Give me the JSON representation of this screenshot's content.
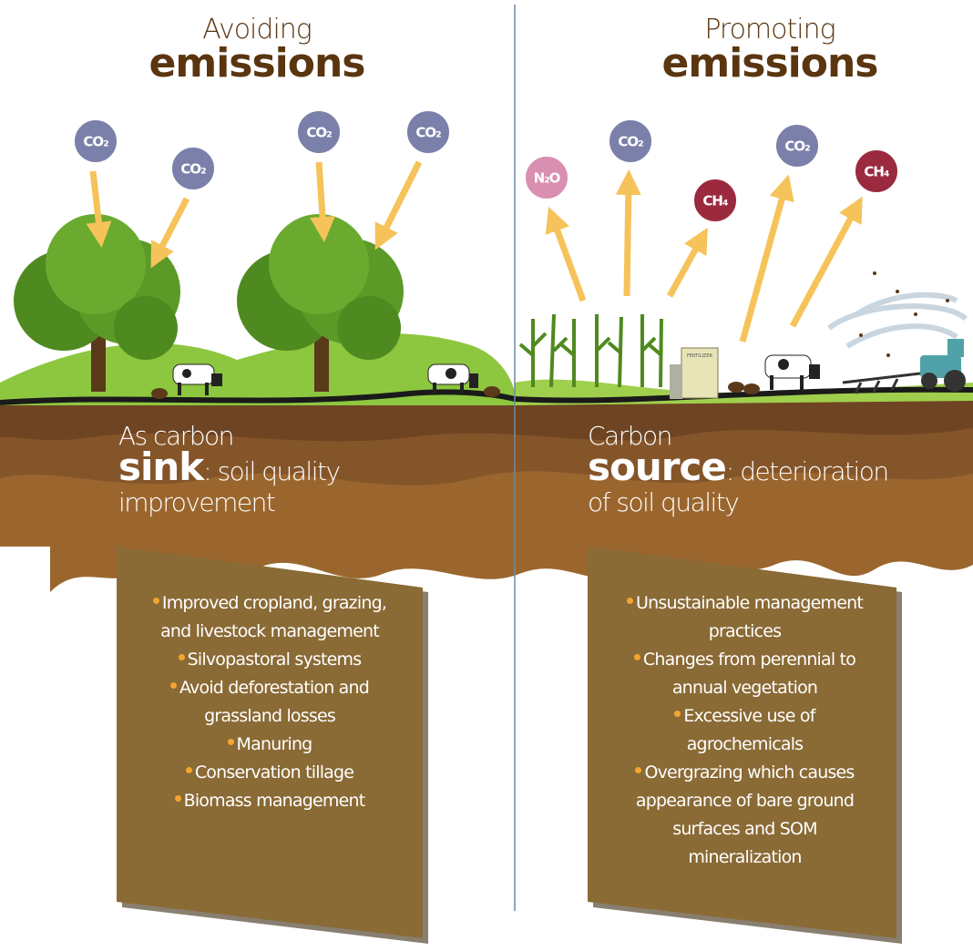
{
  "left": {
    "heading": {
      "small": "Avoiding",
      "big": "emissions"
    },
    "molecules": [
      "CO₂",
      "CO₂",
      "CO₂",
      "CO₂"
    ],
    "caption": {
      "lead": "As carbon",
      "keyword": "sink",
      "rest": ": soil quality improvement"
    },
    "bullets": [
      "Improved cropland, grazing, and livestock management",
      "Silvopastoral systems",
      "Avoid deforestation and grassland losses",
      "Manuring",
      "Conservation tillage",
      "Biomass management"
    ]
  },
  "right": {
    "heading": {
      "small": "Promoting",
      "big": "emissions"
    },
    "molecules": [
      "N₂O",
      "CO₂",
      "CH₄",
      "CO₂",
      "CH₄"
    ],
    "fertilizer_label": "FERTILIZER",
    "caption": {
      "lead": "Carbon",
      "keyword": "source",
      "rest": ": deterioration of soil quality"
    },
    "bullets": [
      "Unsustainable management practices",
      "Changes from perennial to annual vegetation",
      "Excessive use of agrochemicals",
      "Overgrazing which causes appearance of bare ground surfaces and SOM mineralization"
    ]
  }
}
